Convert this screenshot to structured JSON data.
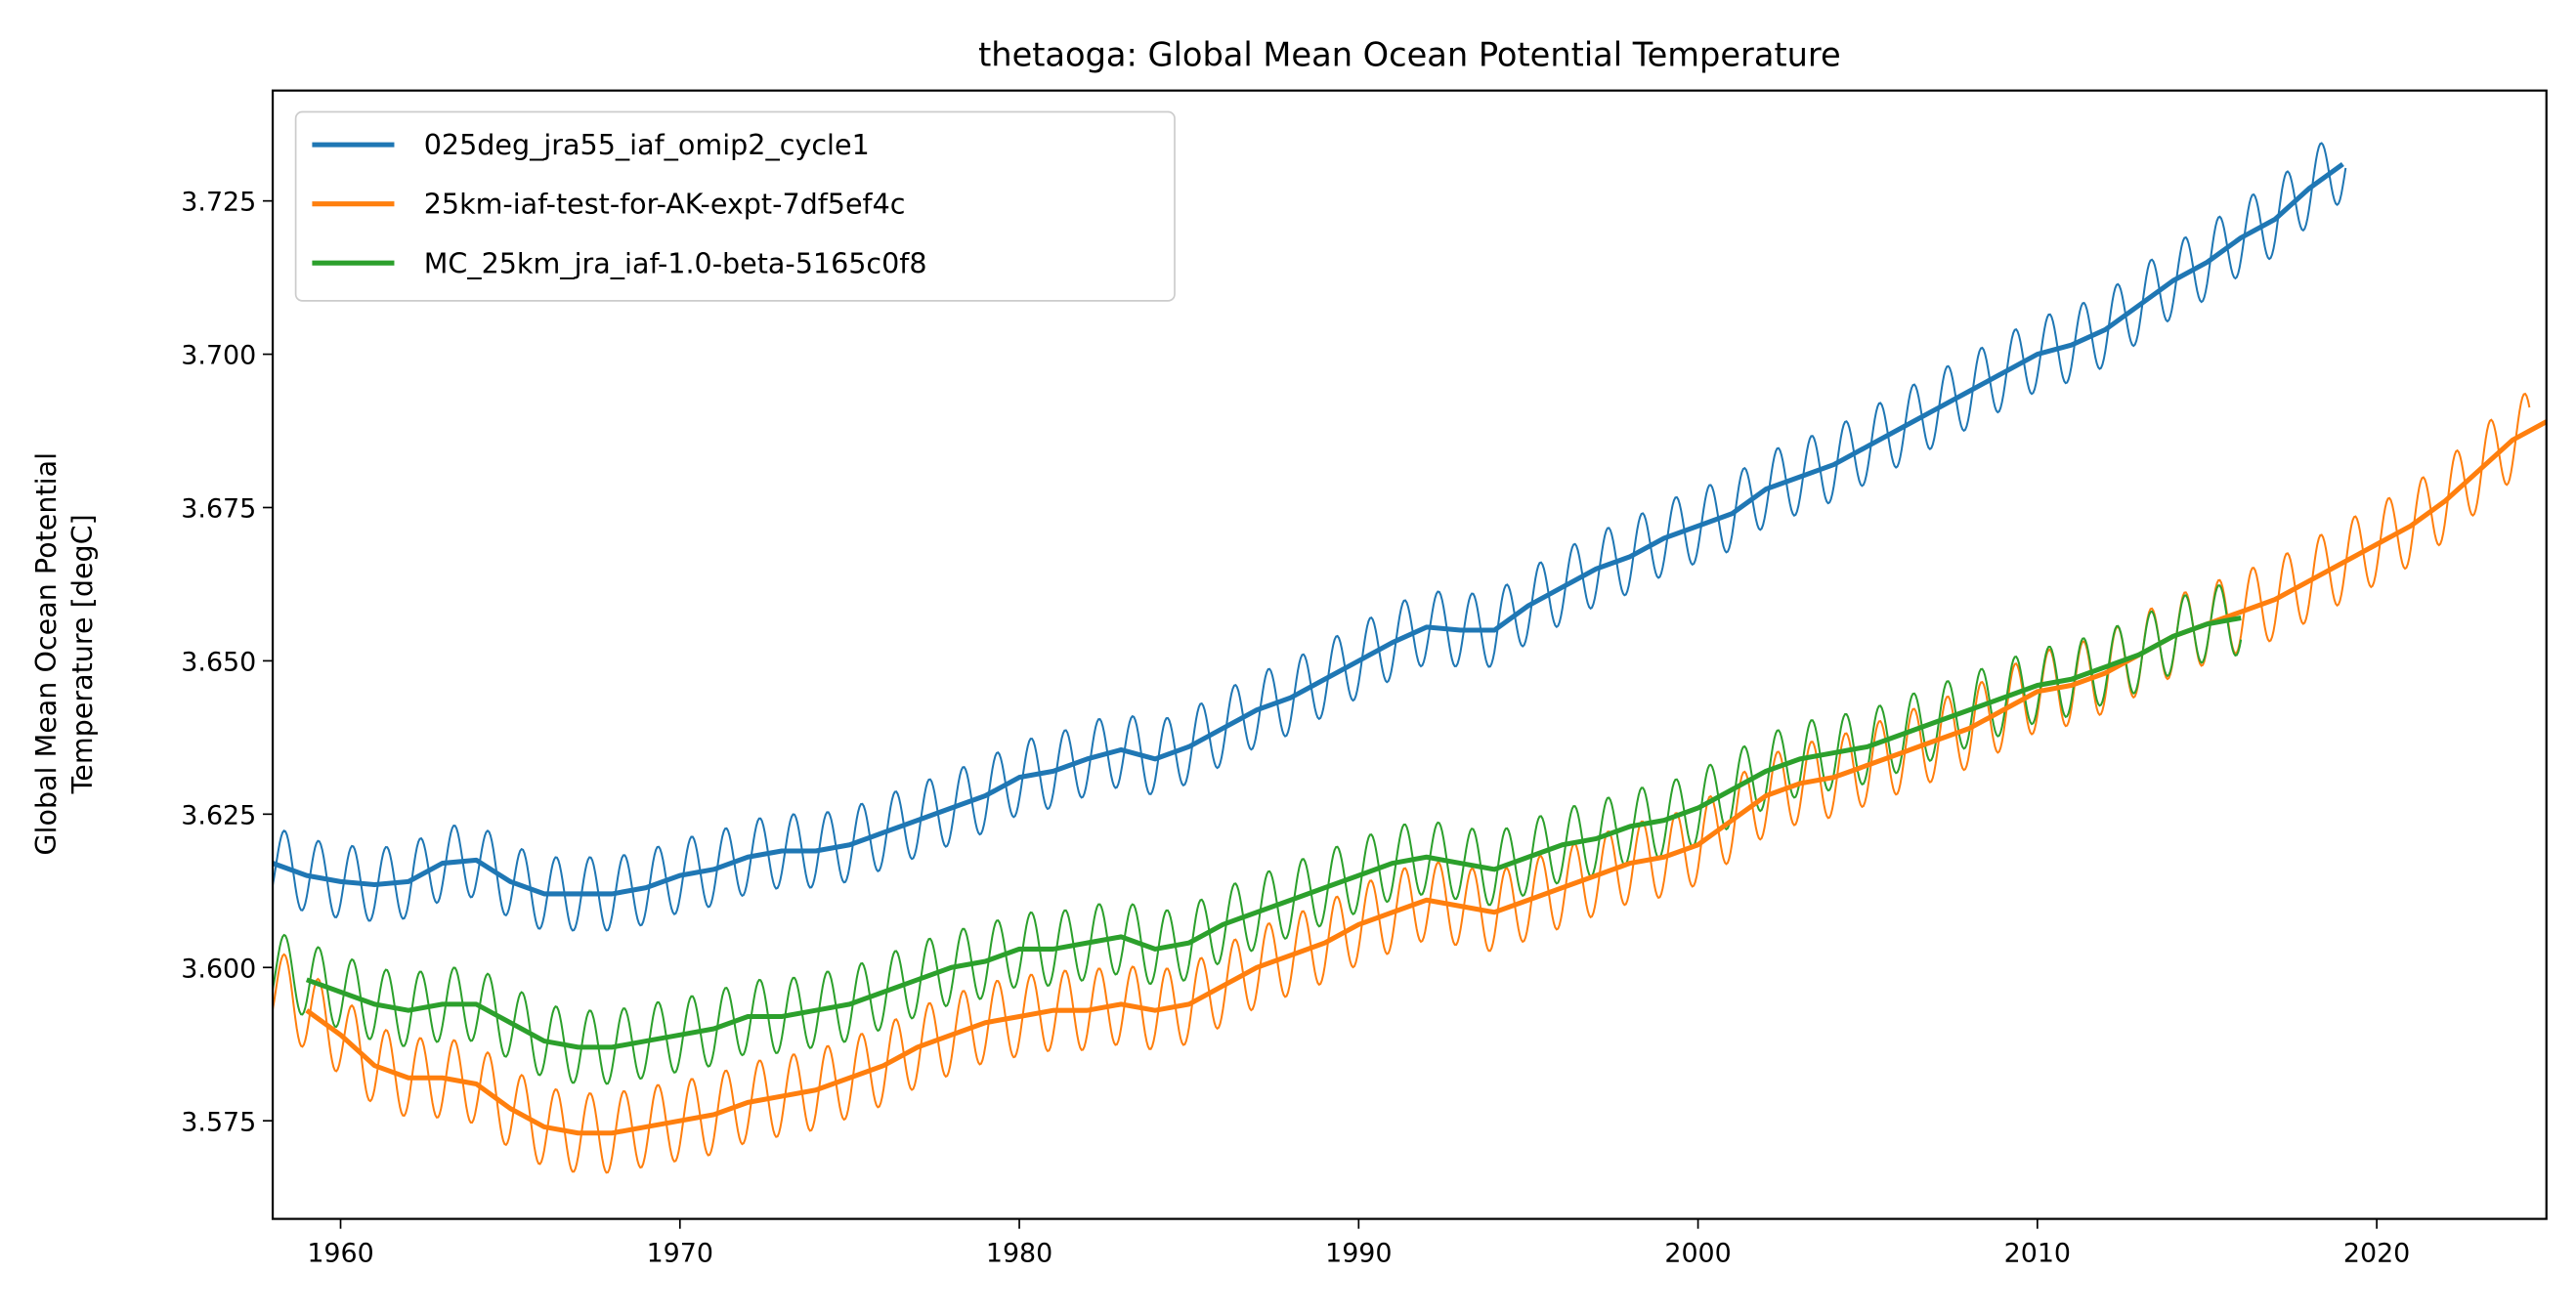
{
  "chart_data": {
    "type": "line",
    "title": "thetaoga: Global Mean Ocean Potential Temperature",
    "xlabel": "",
    "ylabel": [
      "Global Mean Ocean Potential",
      "Temperature [degC]"
    ],
    "xlim": [
      1958,
      2025
    ],
    "ylim": [
      3.559,
      3.743
    ],
    "xticks": [
      1960,
      1970,
      1980,
      1990,
      2000,
      2010,
      2020
    ],
    "yticks": [
      "3.575",
      "3.600",
      "3.625",
      "3.650",
      "3.675",
      "3.700",
      "3.725"
    ],
    "grid": false,
    "legend_position": "top-left",
    "series": [
      {
        "name": "025deg_jra55_iaf_omip2_cycle1",
        "color": "#1f77b4",
        "monthly_range": [
          1958,
          2019.1
        ],
        "seasonal_amplitude": 0.006,
        "annual_x": [
          1958,
          1959,
          1960,
          1961,
          1962,
          1963,
          1964,
          1965,
          1966,
          1967,
          1968,
          1969,
          1970,
          1971,
          1972,
          1973,
          1974,
          1975,
          1976,
          1977,
          1978,
          1979,
          1980,
          1981,
          1982,
          1983,
          1984,
          1985,
          1986,
          1987,
          1988,
          1989,
          1990,
          1991,
          1992,
          1993,
          1994,
          1995,
          1996,
          1997,
          1998,
          1999,
          2000,
          2001,
          2002,
          2003,
          2004,
          2005,
          2006,
          2007,
          2008,
          2009,
          2010,
          2011,
          2012,
          2013,
          2014,
          2015,
          2016,
          2017,
          2018,
          2019
        ],
        "annual_y": [
          3.617,
          3.615,
          3.614,
          3.6135,
          3.614,
          3.617,
          3.6175,
          3.614,
          3.612,
          3.612,
          3.612,
          3.613,
          3.615,
          3.616,
          3.618,
          3.619,
          3.619,
          3.62,
          3.622,
          3.624,
          3.626,
          3.628,
          3.631,
          3.632,
          3.634,
          3.6355,
          3.634,
          3.636,
          3.639,
          3.642,
          3.644,
          3.647,
          3.65,
          3.653,
          3.6555,
          3.655,
          3.655,
          3.659,
          3.662,
          3.665,
          3.667,
          3.67,
          3.672,
          3.674,
          3.678,
          3.68,
          3.682,
          3.685,
          3.688,
          3.691,
          3.694,
          3.697,
          3.7,
          3.7015,
          3.704,
          3.708,
          3.712,
          3.715,
          3.719,
          3.722,
          3.727,
          3.731
        ]
      },
      {
        "name": "25km-iaf-test-for-AK-expt-7df5ef4c",
        "color": "#ff7f0e",
        "monthly_range": [
          1958,
          2024.5
        ],
        "seasonal_amplitude": 0.0065,
        "annual_x": [
          1959,
          1960,
          1961,
          1962,
          1963,
          1964,
          1965,
          1966,
          1967,
          1968,
          1969,
          1970,
          1971,
          1972,
          1973,
          1974,
          1975,
          1976,
          1977,
          1978,
          1979,
          1980,
          1981,
          1982,
          1983,
          1984,
          1985,
          1986,
          1987,
          1988,
          1989,
          1990,
          1991,
          1992,
          1993,
          1994,
          1995,
          1996,
          1997,
          1998,
          1999,
          2000,
          2001,
          2002,
          2003,
          2004,
          2005,
          2006,
          2007,
          2008,
          2009,
          2010,
          2011,
          2012,
          2013,
          2014,
          2015,
          2016,
          2017,
          2018,
          2019,
          2020,
          2021,
          2022,
          2023,
          2024,
          2025
        ],
        "annual_y": [
          3.593,
          3.589,
          3.584,
          3.582,
          3.582,
          3.581,
          3.577,
          3.574,
          3.573,
          3.573,
          3.574,
          3.575,
          3.576,
          3.578,
          3.579,
          3.58,
          3.582,
          3.584,
          3.587,
          3.589,
          3.591,
          3.592,
          3.593,
          3.593,
          3.594,
          3.593,
          3.594,
          3.597,
          3.6,
          3.602,
          3.604,
          3.607,
          3.609,
          3.611,
          3.61,
          3.609,
          3.611,
          3.613,
          3.615,
          3.617,
          3.618,
          3.62,
          3.624,
          3.628,
          3.63,
          3.631,
          3.633,
          3.635,
          3.637,
          3.639,
          3.642,
          3.645,
          3.646,
          3.648,
          3.651,
          3.654,
          3.656,
          3.658,
          3.66,
          3.663,
          3.666,
          3.669,
          3.672,
          3.676,
          3.681,
          3.686,
          3.689
        ]
      },
      {
        "name": "MC_25km_jra_iaf-1.0-beta-5165c0f8",
        "color": "#2ca02c",
        "monthly_range": [
          1958,
          2016
        ],
        "seasonal_amplitude": 0.006,
        "annual_x": [
          1959,
          1960,
          1961,
          1962,
          1963,
          1964,
          1965,
          1966,
          1967,
          1968,
          1969,
          1970,
          1971,
          1972,
          1973,
          1974,
          1975,
          1976,
          1977,
          1978,
          1979,
          1980,
          1981,
          1982,
          1983,
          1984,
          1985,
          1986,
          1987,
          1988,
          1989,
          1990,
          1991,
          1992,
          1993,
          1994,
          1995,
          1996,
          1997,
          1998,
          1999,
          2000,
          2001,
          2002,
          2003,
          2004,
          2005,
          2006,
          2007,
          2008,
          2009,
          2010,
          2011,
          2012,
          2013,
          2014,
          2015,
          2016
        ],
        "annual_y": [
          3.598,
          3.596,
          3.594,
          3.593,
          3.594,
          3.594,
          3.591,
          3.588,
          3.587,
          3.587,
          3.588,
          3.589,
          3.59,
          3.592,
          3.592,
          3.593,
          3.594,
          3.596,
          3.598,
          3.6,
          3.601,
          3.603,
          3.603,
          3.604,
          3.605,
          3.603,
          3.604,
          3.607,
          3.609,
          3.611,
          3.613,
          3.615,
          3.617,
          3.618,
          3.617,
          3.616,
          3.618,
          3.62,
          3.621,
          3.623,
          3.624,
          3.626,
          3.629,
          3.632,
          3.634,
          3.635,
          3.636,
          3.638,
          3.64,
          3.642,
          3.644,
          3.646,
          3.647,
          3.649,
          3.651,
          3.654,
          3.656,
          3.657
        ]
      }
    ]
  }
}
